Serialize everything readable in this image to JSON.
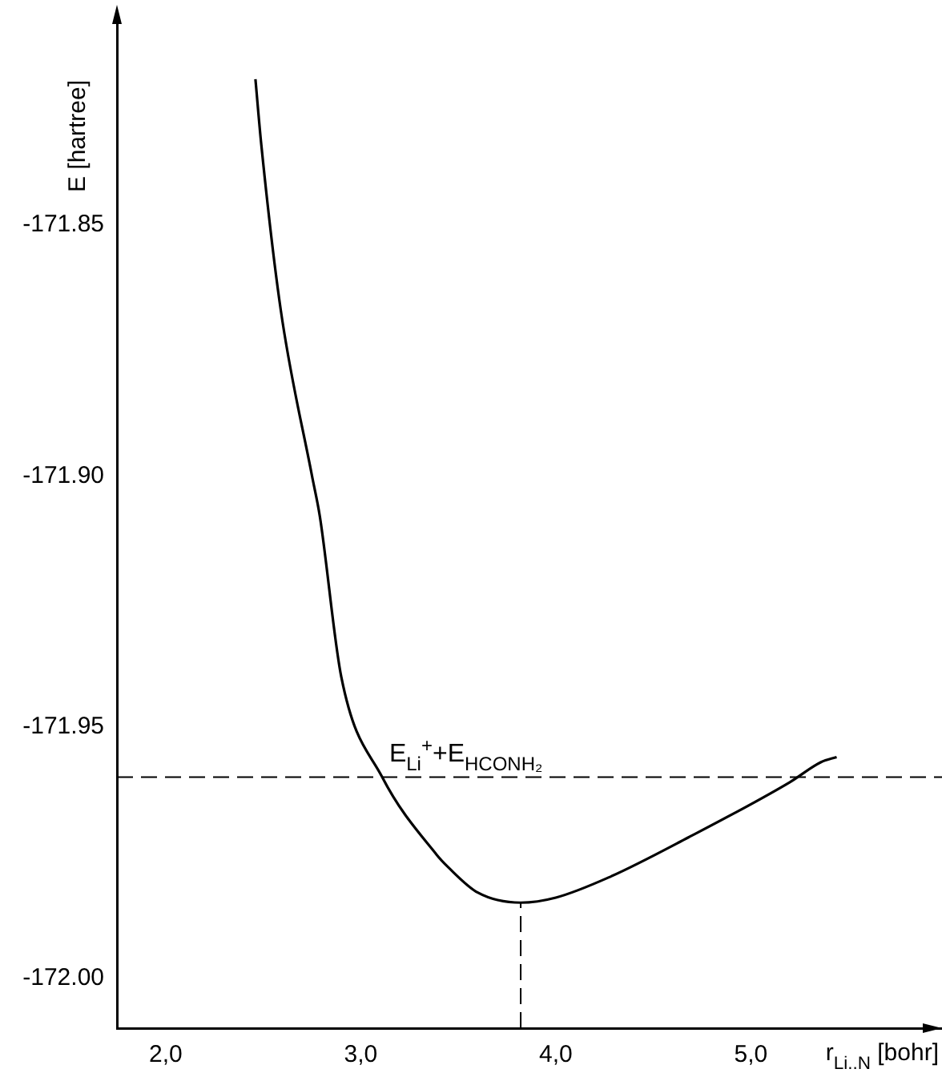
{
  "chart_data": {
    "type": "line",
    "xlabel": "r$_{Li..N}$ [bohr]",
    "ylabel": "E [hartree]",
    "series": [
      {
        "color": "#000000",
        "x": [
          2.46,
          2.49,
          2.59,
          2.75,
          2.79,
          2.9,
          3.11,
          3.39,
          3.45,
          3.6,
          3.82,
          4.0,
          4.27,
          4.68,
          5.2,
          5.36,
          5.44
        ],
        "values": [
          -171.821,
          -171.834,
          -171.867,
          -171.9,
          -171.908,
          -171.94,
          -171.96,
          -171.9755,
          -171.978,
          -171.983,
          -171.985,
          -171.984,
          -171.98,
          -171.972,
          -171.961,
          -171.957,
          -171.956
        ]
      }
    ],
    "xlim": [
      1.75,
      5.98
    ],
    "ylim": [
      -172.01,
      -171.81
    ],
    "xticks": [
      {
        "value": 2,
        "label": "2,0"
      },
      {
        "value": 3,
        "label": "3,0"
      },
      {
        "value": 4,
        "label": "4,0"
      },
      {
        "value": 5,
        "label": "5,0"
      }
    ],
    "yticks": [
      {
        "value": -172.0,
        "label": "-172.00"
      },
      -171.95,
      {
        "value": -171.9,
        "label": "-171.90"
      },
      -171.85
    ],
    "ref_lines": [
      {
        "axis": "y",
        "value": -171.96,
        "label": "E$_{Li}$$^{+}$+E$_{HCONH₂}$",
        "line_style": "dashed"
      },
      {
        "axis": "x",
        "value": 3.82,
        "line_style": "dashed"
      }
    ],
    "grid": false,
    "legend": false,
    "marker": "none",
    "line_style": "solid"
  }
}
